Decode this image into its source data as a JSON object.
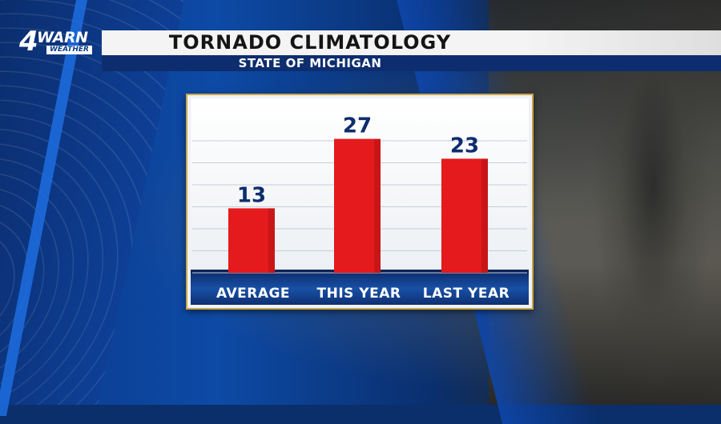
{
  "branding": {
    "logo_number": "4",
    "logo_word": "WARN",
    "logo_sub": "WEATHER"
  },
  "header": {
    "title": "TORNADO CLIMATOLOGY",
    "subtitle": "STATE OF MICHIGAN"
  },
  "colors": {
    "bar": "#e41a1c",
    "value_text": "#0d2d6e",
    "label_strip": "#0e2f70"
  },
  "chart_data": {
    "type": "bar",
    "title": "TORNADO CLIMATOLOGY",
    "subtitle": "STATE OF MICHIGAN",
    "categories": [
      "AVERAGE",
      "THIS YEAR",
      "LAST YEAR"
    ],
    "values": [
      13,
      27,
      23
    ],
    "data_labels": [
      "13",
      "27",
      "23"
    ],
    "ylim": [
      0,
      30
    ],
    "grid": true,
    "xlabel": "",
    "ylabel": ""
  }
}
